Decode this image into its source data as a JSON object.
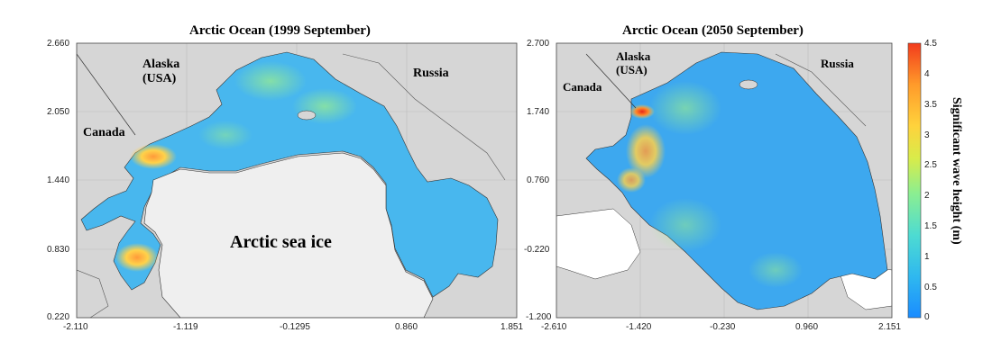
{
  "panels": [
    {
      "title": "Arctic Ocean (1999 September)",
      "y_ticks": [
        "2.660",
        "2.050",
        "1.440",
        "0.830",
        "0.220"
      ],
      "x_ticks": [
        "-2.110",
        "-1.119",
        "-0.1295",
        "0.860",
        "1.851"
      ],
      "labels": {
        "alaska": "Alaska",
        "usa": "(USA)",
        "russia": "Russia",
        "canada": "Canada",
        "sea_ice": "Arctic sea ice"
      }
    },
    {
      "title": "Arctic Ocean (2050 September)",
      "y_ticks": [
        "2.700",
        "1.740",
        "0.760",
        "-0.220",
        "-1.200"
      ],
      "x_ticks": [
        "-2.610",
        "-1.420",
        "-0.230",
        "0.960",
        "2.151"
      ],
      "labels": {
        "alaska": "Alaska",
        "usa": "(USA)",
        "russia": "Russia",
        "canada": "Canada"
      }
    }
  ],
  "colorbar": {
    "title": "Significant wave height (m)",
    "ticks": [
      "4.5",
      "4",
      "3.5",
      "3",
      "2.5",
      "2",
      "1.5",
      "1",
      "0.5",
      "0"
    ],
    "min": 0,
    "max": 4.5,
    "colors": [
      "#1a8cff",
      "#2fb8ef",
      "#4ddbd2",
      "#8aee92",
      "#d8ec4a",
      "#ffd23c",
      "#ff9a2a",
      "#f23b1c"
    ]
  }
}
